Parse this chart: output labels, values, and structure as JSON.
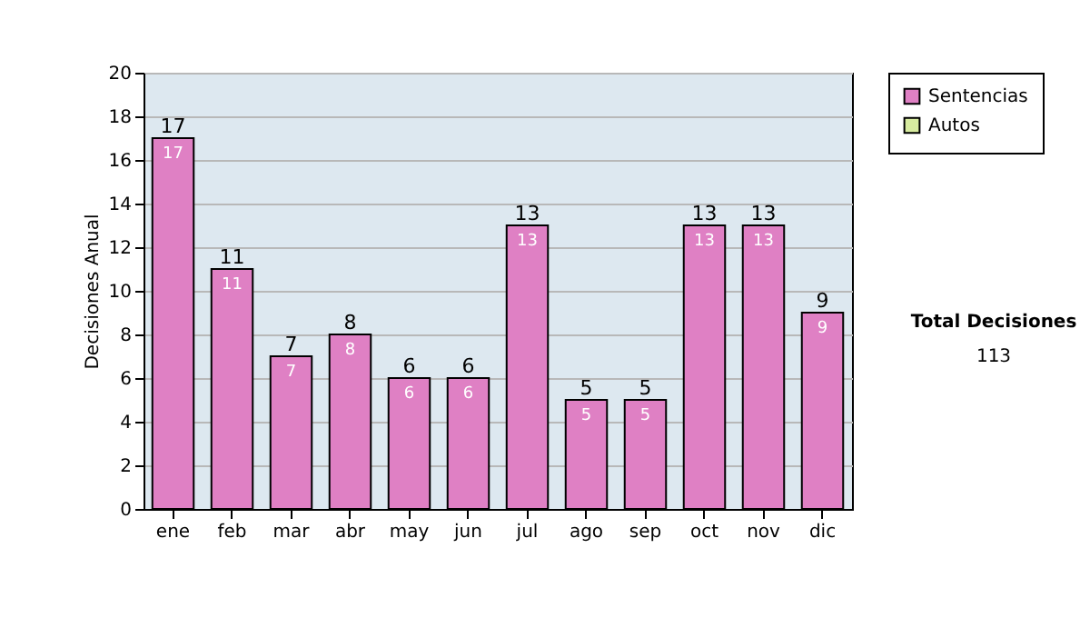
{
  "chart_data": {
    "type": "bar",
    "ylabel": "Decisiones Anual",
    "categories": [
      "ene",
      "feb",
      "mar",
      "abr",
      "may",
      "jun",
      "jul",
      "ago",
      "sep",
      "oct",
      "nov",
      "dic"
    ],
    "stacked": true,
    "series": [
      {
        "name": "Sentencias",
        "color": "#df80c4",
        "values": [
          17,
          11,
          7,
          8,
          6,
          6,
          13,
          5,
          5,
          13,
          13,
          9
        ],
        "value_labels": [
          "17",
          "11",
          "7",
          "8",
          "6",
          "6",
          "13",
          "5",
          "5",
          "13",
          "13",
          "9"
        ]
      },
      {
        "name": "Autos",
        "color": "#d8eca0",
        "values": [
          0,
          0,
          0,
          0,
          0,
          0,
          0,
          0,
          0,
          0,
          0,
          0
        ]
      }
    ],
    "totals": [
      "17",
      "11",
      "7",
      "8",
      "6",
      "6",
      "13",
      "5",
      "5",
      "13",
      "13",
      "9"
    ],
    "ylim": [
      0,
      20
    ],
    "yticks": [
      0,
      2,
      4,
      6,
      8,
      10,
      12,
      14,
      16,
      18,
      20
    ],
    "grid": "y",
    "legend": "right",
    "annotations": [
      "Total Decisiones",
      "113"
    ]
  }
}
